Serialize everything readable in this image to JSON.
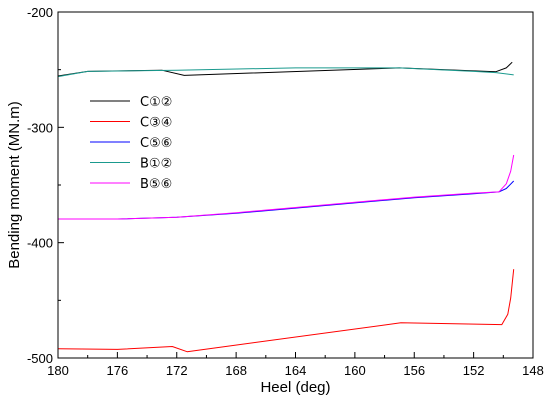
{
  "chart_data": {
    "type": "line",
    "title": "",
    "xlabel": "Heel (deg)",
    "ylabel": "Bending moment (MN.m)",
    "xlim": [
      180,
      148
    ],
    "ylim": [
      -500,
      -200
    ],
    "x_reversed": true,
    "xticks": [
      180,
      176,
      172,
      168,
      164,
      160,
      156,
      152,
      148
    ],
    "yticks": [
      -200,
      -300,
      -400,
      -500
    ],
    "grid": false,
    "legend_position": "upper-left",
    "series": [
      {
        "name": "C①②",
        "color": "#000000",
        "x": [
          180,
          178,
          173,
          171.5,
          157,
          150.5,
          149.8,
          149.4
        ],
        "y": [
          -255.5,
          -251.5,
          -250.5,
          -255,
          -248.5,
          -251.8,
          -248.5,
          -243.5
        ]
      },
      {
        "name": "C③④",
        "color": "#ff0000",
        "x": [
          180,
          176,
          172.3,
          171.3,
          156.9,
          150.1,
          149.7,
          149.5,
          149.3
        ],
        "y": [
          -492,
          -492.5,
          -490,
          -494.5,
          -469.5,
          -471,
          -462,
          -448,
          -423
        ]
      },
      {
        "name": "C⑤⑥",
        "color": "#0000ff",
        "x": [
          180,
          176,
          172,
          168,
          164,
          160,
          156,
          152,
          150.3,
          149.8,
          149.3
        ],
        "y": [
          -379.5,
          -379.5,
          -378,
          -374.5,
          -370,
          -365.5,
          -361,
          -357.5,
          -356,
          -353,
          -346.5
        ]
      },
      {
        "name": "B①②",
        "color": "#1a9a8e",
        "x": [
          180,
          178,
          172,
          164,
          157,
          152,
          150.5,
          149.3
        ],
        "y": [
          -256,
          -251.5,
          -250.5,
          -248.5,
          -248.5,
          -251.5,
          -252.5,
          -254.5
        ]
      },
      {
        "name": "B⑤⑥",
        "color": "#ff00ff",
        "x": [
          180,
          176,
          172,
          168,
          164,
          160,
          156,
          152,
          150.3,
          149.8,
          149.5,
          149.3
        ],
        "y": [
          -379.5,
          -379.5,
          -378,
          -374,
          -369.5,
          -365,
          -360.5,
          -357,
          -356,
          -349,
          -338,
          -324
        ]
      }
    ]
  }
}
